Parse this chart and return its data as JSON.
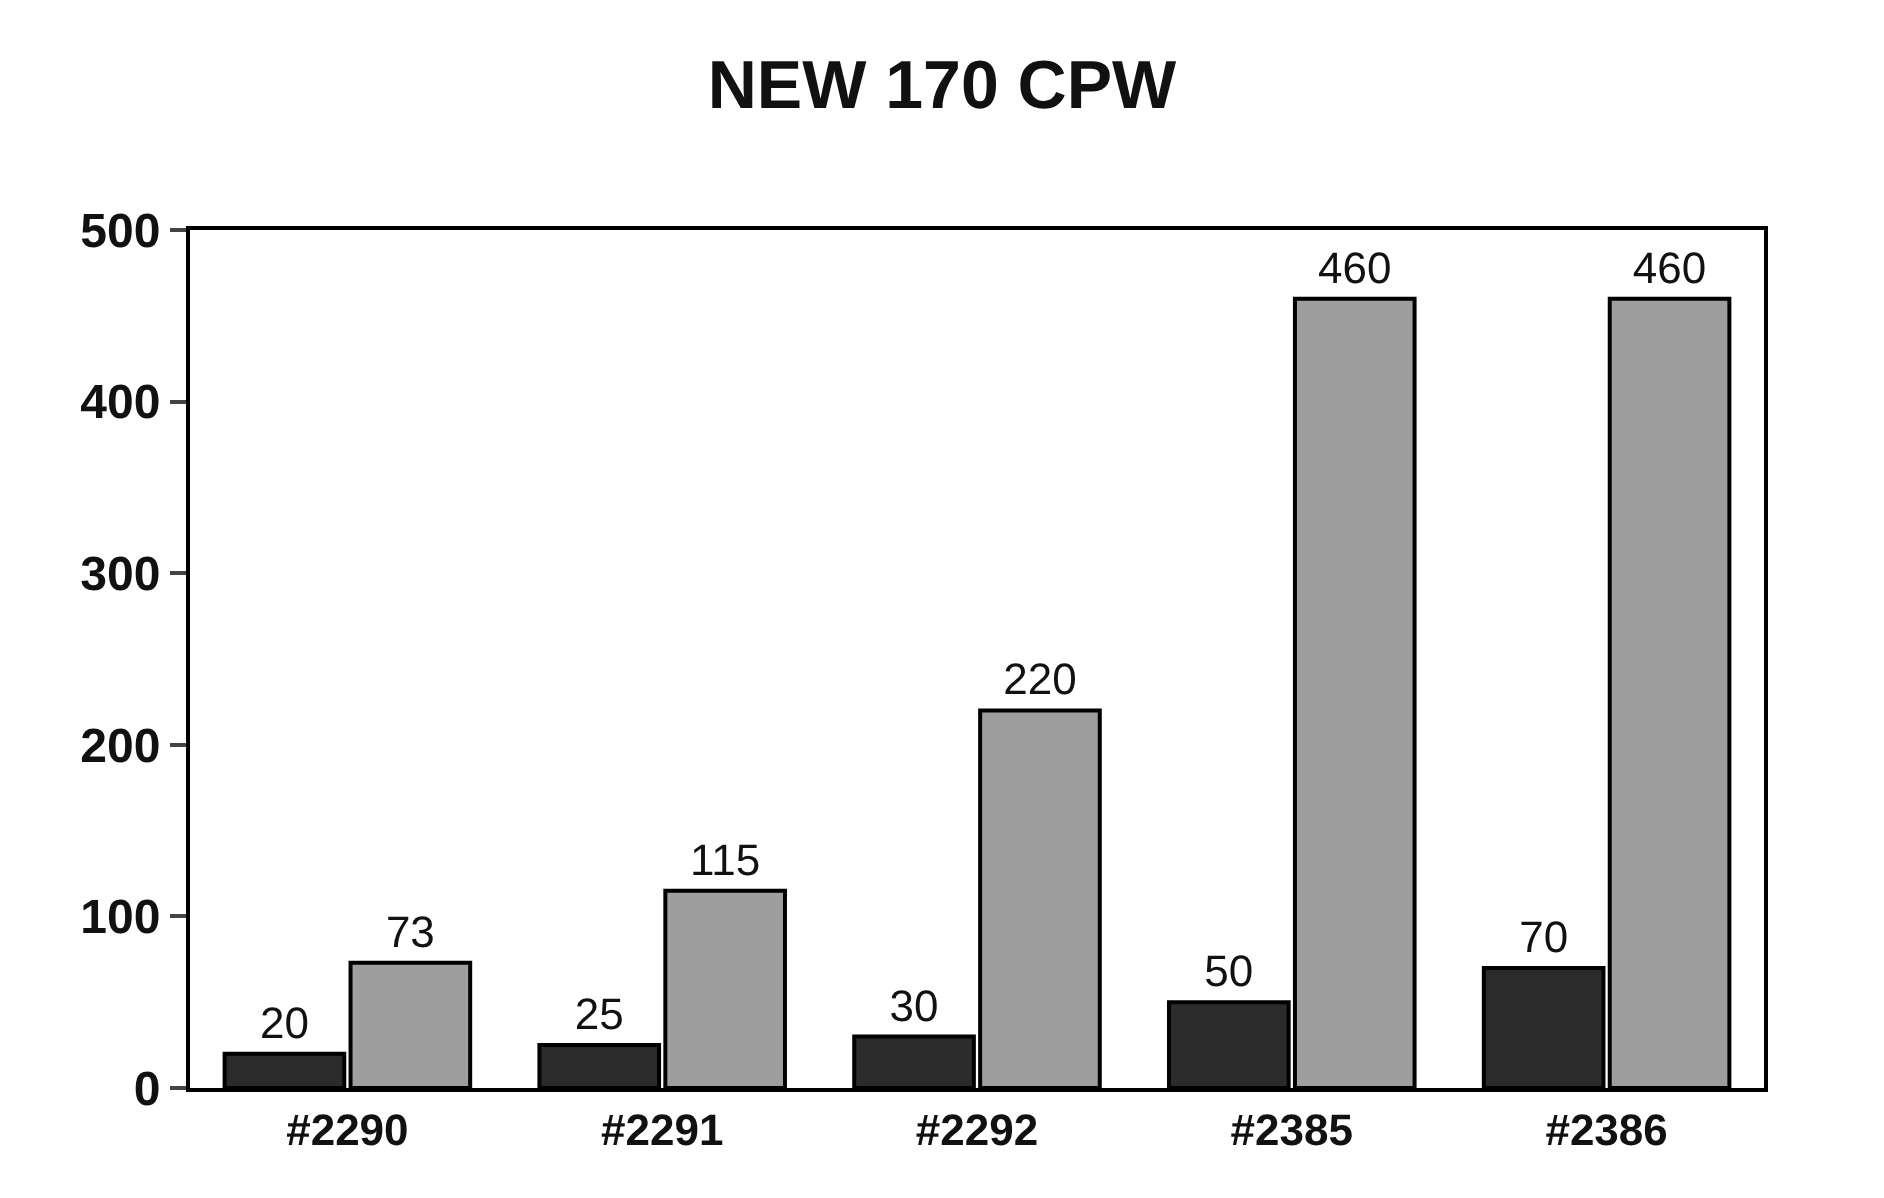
{
  "chart_data": {
    "type": "bar",
    "title": "NEW 170 CPW",
    "categories": [
      "#2290",
      "#2291",
      "#2292",
      "#2385",
      "#2386"
    ],
    "series": [
      {
        "color": "#2b2b2b",
        "values": [
          20,
          25,
          30,
          50,
          70
        ]
      },
      {
        "color": "#9e9e9e",
        "values": [
          73,
          115,
          220,
          460,
          460
        ]
      }
    ],
    "ylim": [
      0,
      500
    ],
    "yticks": [
      0,
      100,
      200,
      300,
      400,
      500
    ],
    "data_labels": true
  }
}
